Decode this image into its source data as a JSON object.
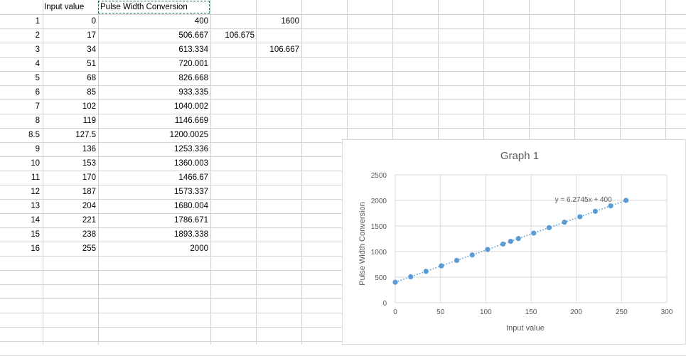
{
  "sheet": {
    "headers": {
      "input": "Input value",
      "pwc": "Pulse Width Conversion"
    },
    "rows": [
      {
        "idx": "1",
        "input": "0",
        "pwc": "400",
        "d": "",
        "e": "1600"
      },
      {
        "idx": "2",
        "input": "17",
        "pwc": "506.667",
        "d": "106.675",
        "e": ""
      },
      {
        "idx": "3",
        "input": "34",
        "pwc": "613.334",
        "d": "",
        "e": "106.667"
      },
      {
        "idx": "4",
        "input": "51",
        "pwc": "720.001",
        "d": "",
        "e": ""
      },
      {
        "idx": "5",
        "input": "68",
        "pwc": "826.668",
        "d": "",
        "e": ""
      },
      {
        "idx": "6",
        "input": "85",
        "pwc": "933.335",
        "d": "",
        "e": ""
      },
      {
        "idx": "7",
        "input": "102",
        "pwc": "1040.002",
        "d": "",
        "e": ""
      },
      {
        "idx": "8",
        "input": "119",
        "pwc": "1146.669",
        "d": "",
        "e": ""
      },
      {
        "idx": "8.5",
        "input": "127.5",
        "pwc": "1200.0025",
        "d": "",
        "e": ""
      },
      {
        "idx": "9",
        "input": "136",
        "pwc": "1253.336",
        "d": "",
        "e": ""
      },
      {
        "idx": "10",
        "input": "153",
        "pwc": "1360.003",
        "d": "",
        "e": ""
      },
      {
        "idx": "11",
        "input": "170",
        "pwc": "1466.67",
        "d": "",
        "e": ""
      },
      {
        "idx": "12",
        "input": "187",
        "pwc": "1573.337",
        "d": "",
        "e": ""
      },
      {
        "idx": "13",
        "input": "204",
        "pwc": "1680.004",
        "d": "",
        "e": ""
      },
      {
        "idx": "14",
        "input": "221",
        "pwc": "1786.671",
        "d": "",
        "e": ""
      },
      {
        "idx": "15",
        "input": "238",
        "pwc": "1893.338",
        "d": "",
        "e": ""
      },
      {
        "idx": "16",
        "input": "255",
        "pwc": "2000",
        "d": "",
        "e": ""
      }
    ]
  },
  "colors": {
    "marker": "#5b9bd5",
    "gridline": "#d4d4d4",
    "chart_grid": "#d9d9d9",
    "axis_text": "#595959",
    "selection": "#217346"
  },
  "chart_data": {
    "type": "scatter",
    "title": "Graph 1",
    "xlabel": "Input value",
    "ylabel": "Pulse Width Conversion",
    "xlim": [
      0,
      300
    ],
    "ylim": [
      0,
      2500
    ],
    "xticks": [
      0,
      50,
      100,
      150,
      200,
      250,
      300
    ],
    "yticks": [
      0,
      500,
      1000,
      1500,
      2000,
      2500
    ],
    "grid": true,
    "x": [
      0,
      17,
      34,
      51,
      68,
      85,
      102,
      119,
      127.5,
      136,
      153,
      170,
      187,
      204,
      221,
      238,
      255
    ],
    "y": [
      400,
      506.667,
      613.334,
      720.001,
      826.668,
      933.335,
      1040.002,
      1146.669,
      1200.0025,
      1253.336,
      1360.003,
      1466.67,
      1573.337,
      1680.004,
      1786.671,
      1893.338,
      2000
    ],
    "trendline": {
      "type": "linear",
      "slope": 6.2745,
      "intercept": 400,
      "label": "y = 6.2745x + 400"
    }
  }
}
